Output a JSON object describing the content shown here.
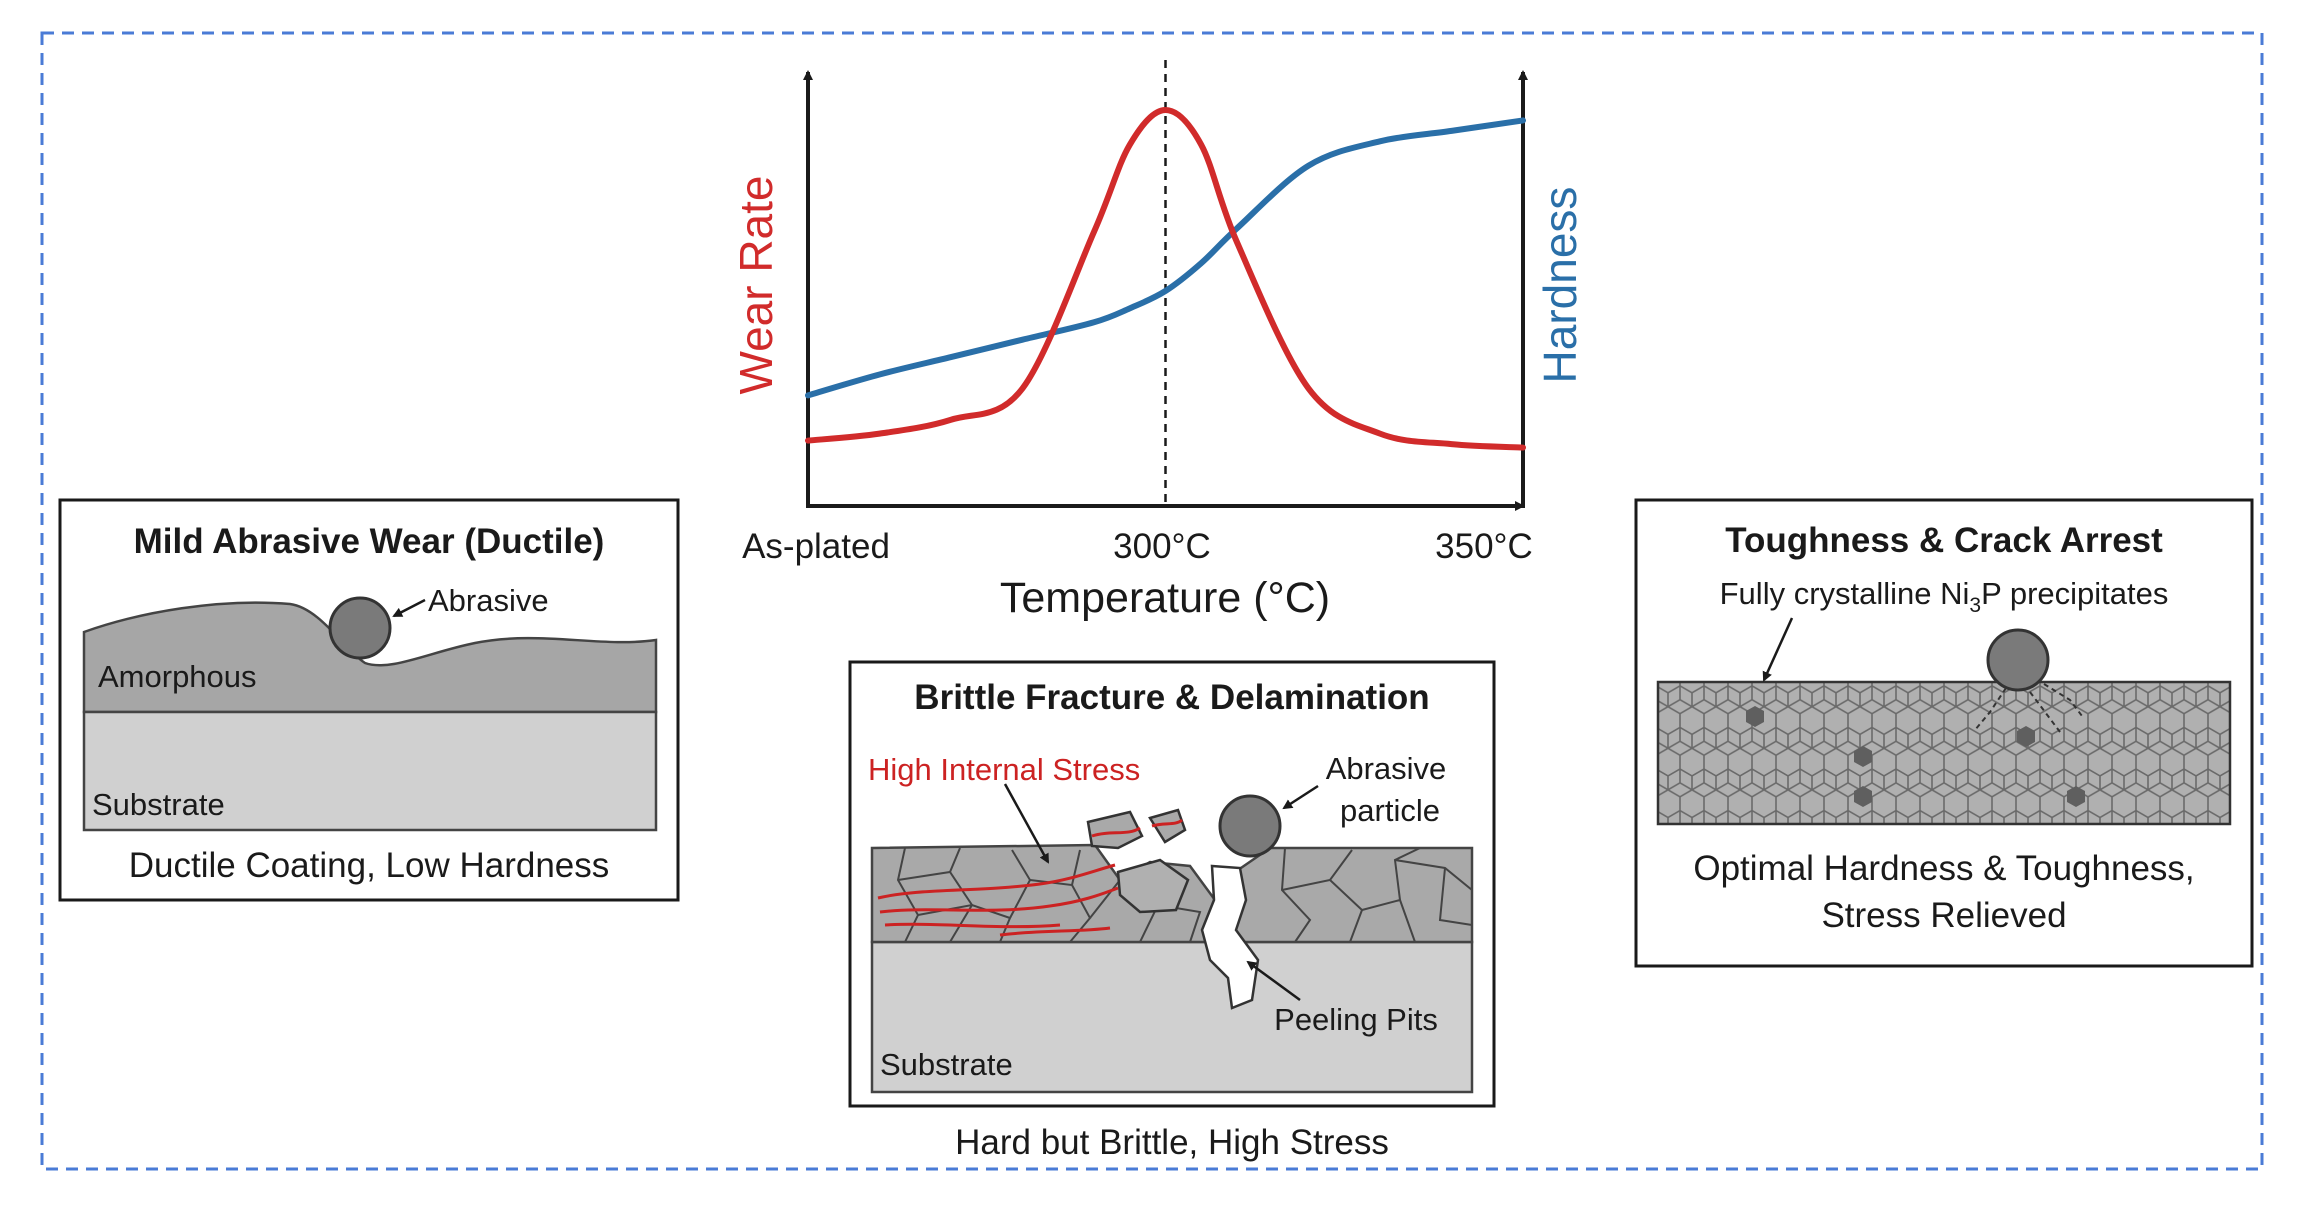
{
  "colors": {
    "frame_border": "#4a7bd6",
    "wear_curve": "#d12b2b",
    "hardness_curve": "#2a6fa8",
    "stress_lines": "#cc2222",
    "coating_fill": "#a6a6a6",
    "substrate_fill": "#d0d0d0",
    "text": "#1a1a1a"
  },
  "chart": {
    "left_axis_label": "Wear Rate",
    "right_axis_label": "Hardness",
    "x_axis_title": "Temperature (°C)",
    "x_ticks": [
      "As-plated",
      "300°C",
      "350°C"
    ]
  },
  "chart_data": {
    "type": "line",
    "xlabel": "Temperature (°C)",
    "categories": [
      "As-plated",
      "300°C",
      "350°C"
    ],
    "ylabel": "Wear Rate",
    "y2label": "Hardness",
    "x": [
      0,
      0.1,
      0.2,
      0.3,
      0.4,
      0.45,
      0.5,
      0.55,
      0.6,
      0.7,
      0.8,
      0.9,
      1.0
    ],
    "series": [
      {
        "name": "Wear Rate",
        "axis": "left",
        "values": [
          0.05,
          0.07,
          0.11,
          0.2,
          0.65,
          0.9,
          1.0,
          0.9,
          0.62,
          0.2,
          0.07,
          0.04,
          0.03
        ]
      },
      {
        "name": "Hardness",
        "axis": "right",
        "values": [
          0.18,
          0.24,
          0.29,
          0.34,
          0.39,
          0.43,
          0.48,
          0.56,
          0.66,
          0.84,
          0.91,
          0.94,
          0.97
        ]
      }
    ],
    "annotations": [
      {
        "text": "dashed line",
        "x": 0.5
      }
    ],
    "grid": false
  },
  "panel_left": {
    "title": "Mild Abrasive Wear (Ductile)",
    "abrasive_label": "Abrasive",
    "coating_label": "Amorphous",
    "substrate_label": "Substrate",
    "caption": "Ductile Coating, Low Hardness"
  },
  "panel_center": {
    "title": "Brittle Fracture & Delamination",
    "stress_label": "High Internal Stress",
    "particle_label_1": "Abrasive",
    "particle_label_2": "particle",
    "pits_label": "Peeling Pits",
    "substrate_label": "Substrate",
    "caption": "Hard but Brittle, High Stress"
  },
  "panel_right": {
    "title": "Toughness & Crack Arrest",
    "precipitate_label_pre": "Fully crystalline Ni",
    "precipitate_label_sub": "3",
    "precipitate_label_post": "P precipitates",
    "caption_line1": "Optimal Hardness & Toughness,",
    "caption_line2": "Stress Relieved"
  }
}
